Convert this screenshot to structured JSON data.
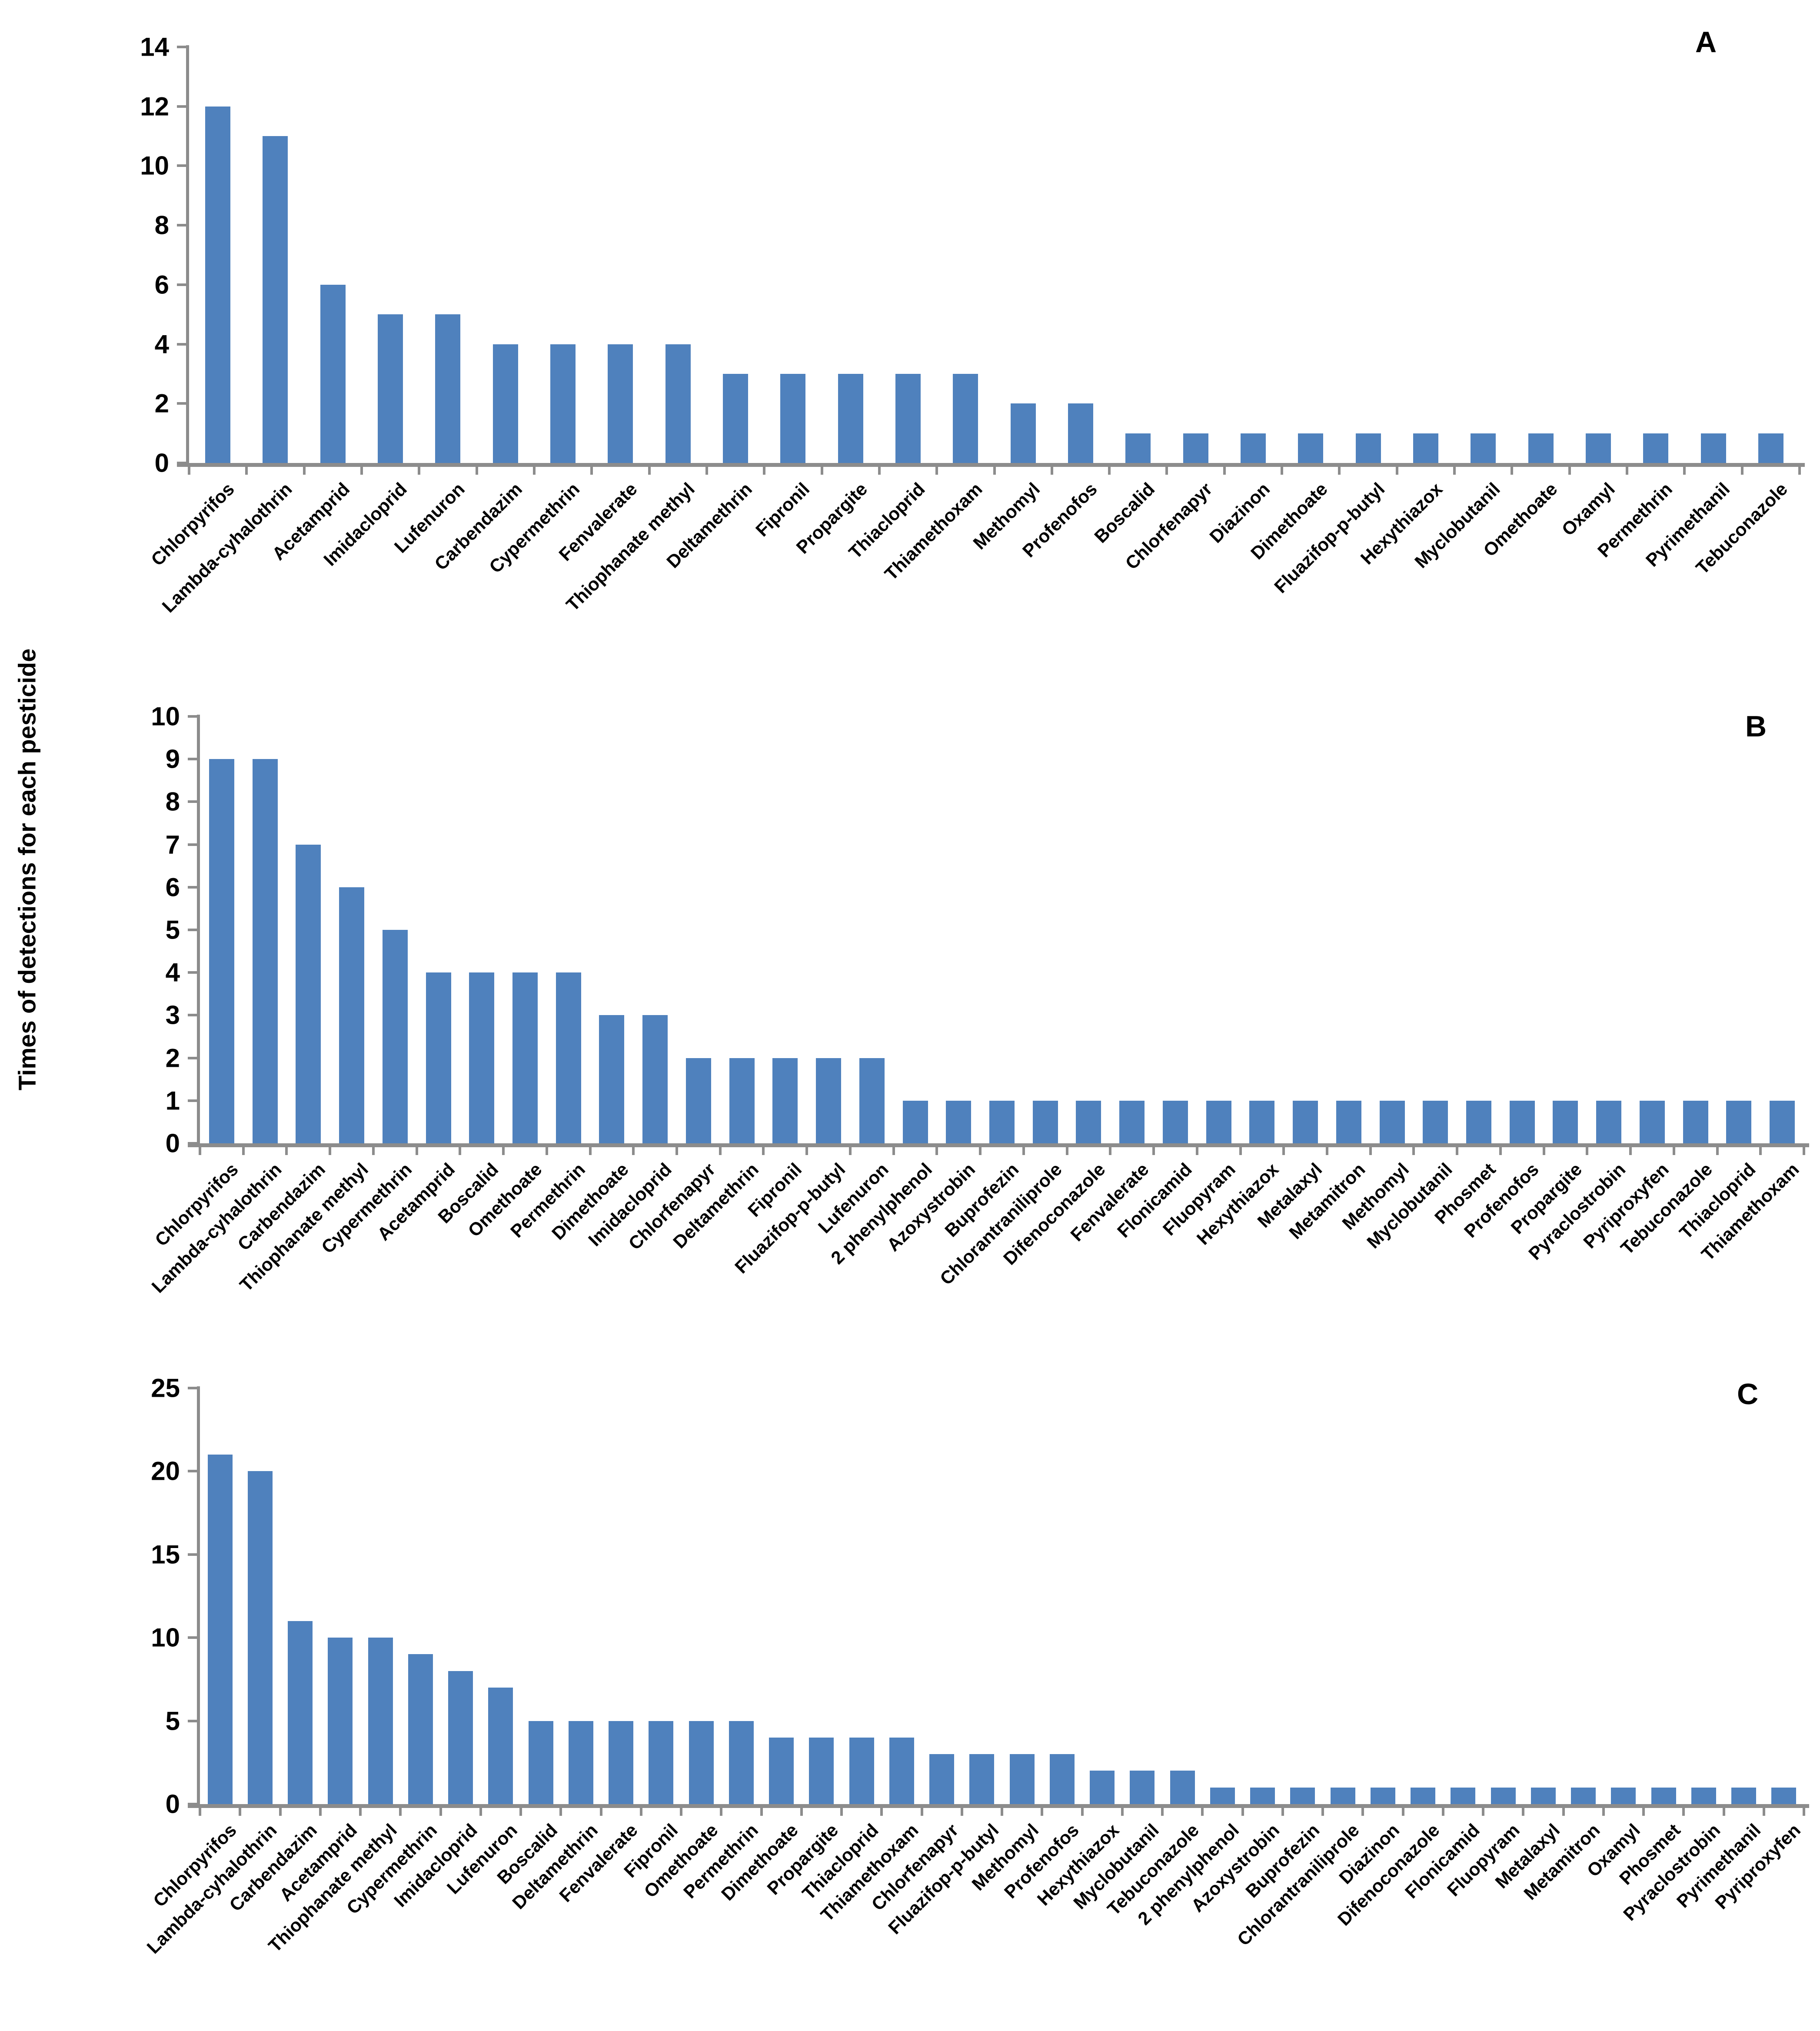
{
  "figure": {
    "ylabel": "Times of detections for each pesticide",
    "bar_color": "#4F81BD",
    "axis_color": "#8C8C8C",
    "text_color": "#000000",
    "background": "#FFFFFF"
  },
  "chart_data": [
    {
      "type": "bar",
      "panel": "A",
      "title": "",
      "xlabel": "",
      "ylabel": "Times of detections for each pesticide",
      "ylim": [
        0,
        14
      ],
      "yticks": [
        0,
        2,
        4,
        6,
        8,
        10,
        12,
        14
      ],
      "grid": false,
      "legend_position": "none",
      "categories": [
        "Chlorpyrifos",
        "Lambda-cyhalothrin",
        "Acetamprid",
        "Imidacloprid",
        "Lufenuron",
        "Carbendazim",
        "Cypermethrin",
        "Fenvalerate",
        "Thiophanate methyl",
        "Deltamethrin",
        "Fipronil",
        "Propargite",
        "Thiacloprid",
        "Thiamethoxam",
        "Methomyl",
        "Profenofos",
        "Boscalid",
        "Chlorfenapyr",
        "Diazinon",
        "Dimethoate",
        "Fluazifop-p-butyl",
        "Hexythiazox",
        "Myclobutanil",
        "Omethoate",
        "Oxamyl",
        "Permethrin",
        "Pyrimethanil",
        "Tebuconazole"
      ],
      "values": [
        12,
        11,
        6,
        5,
        5,
        4,
        4,
        4,
        4,
        3,
        3,
        3,
        3,
        3,
        2,
        2,
        1,
        1,
        1,
        1,
        1,
        1,
        1,
        1,
        1,
        1,
        1,
        1
      ]
    },
    {
      "type": "bar",
      "panel": "B",
      "title": "",
      "xlabel": "",
      "ylabel": "Times of detections for each pesticide",
      "ylim": [
        0,
        10
      ],
      "yticks": [
        0,
        1,
        2,
        3,
        4,
        5,
        6,
        7,
        8,
        9,
        10
      ],
      "grid": false,
      "legend_position": "none",
      "categories": [
        "Chlorpyrifos",
        "Lambda-cyhalothrin",
        "Carbendazim",
        "Thiophanate methyl",
        "Cypermethrin",
        "Acetamprid",
        "Boscalid",
        "Omethoate",
        "Permethrin",
        "Dimethoate",
        "Imidacloprid",
        "Chlorfenapyr",
        "Deltamethrin",
        "Fipronil",
        "Fluazifop-p-butyl",
        "Lufenuron",
        "2 phenylphenol",
        "Azoxystrobin",
        "Buprofezin",
        "Chlorantraniliprole",
        "Difenoconazole",
        "Fenvalerate",
        "Flonicamid",
        "Fluopyram",
        "Hexythiazox",
        "Metalaxyl",
        "Metamitron",
        "Methomyl",
        "Myclobutanil",
        "Phosmet",
        "Profenofos",
        "Propargite",
        "Pyraclostrobin",
        "Pyriproxyfen",
        "Tebuconazole",
        "Thiacloprid",
        "Thiamethoxam"
      ],
      "values": [
        9,
        9,
        7,
        6,
        5,
        4,
        4,
        4,
        4,
        3,
        3,
        2,
        2,
        2,
        2,
        2,
        1,
        1,
        1,
        1,
        1,
        1,
        1,
        1,
        1,
        1,
        1,
        1,
        1,
        1,
        1,
        1,
        1,
        1,
        1,
        1,
        1
      ]
    },
    {
      "type": "bar",
      "panel": "C",
      "title": "",
      "xlabel": "",
      "ylabel": "Times of detections for each pesticide",
      "ylim": [
        0,
        25
      ],
      "yticks": [
        0,
        5,
        10,
        15,
        20,
        25
      ],
      "grid": false,
      "legend_position": "none",
      "categories": [
        "Chlorpyrifos",
        "Lambda-cyhalothrin",
        "Carbendazim",
        "Acetamprid",
        "Thiophanate methyl",
        "Cypermethrin",
        "Imidacloprid",
        "Lufenuron",
        "Boscalid",
        "Deltamethrin",
        "Fenvalerate",
        "Fipronil",
        "Omethoate",
        "Permethrin",
        "Dimethoate",
        "Propargite",
        "Thiacloprid",
        "Thiamethoxam",
        "Chlorfenapyr",
        "Fluazifop-p-butyl",
        "Methomyl",
        "Profenofos",
        "Hexythiazox",
        "Myclobutanil",
        "Tebuconazole",
        "2 phenylphenol",
        "Azoxystrobin",
        "Buprofezin",
        "Chlorantraniliprole",
        "Diazinon",
        "Difenoconazole",
        "Flonicamid",
        "Fluopyram",
        "Metalaxyl",
        "Metamitron",
        "Oxamyl",
        "Phosmet",
        "Pyraclostrobin",
        "Pyrimethanil",
        "Pyriproxyfen"
      ],
      "values": [
        21,
        20,
        11,
        10,
        10,
        9,
        8,
        7,
        5,
        5,
        5,
        5,
        5,
        5,
        4,
        4,
        4,
        4,
        3,
        3,
        3,
        3,
        2,
        2,
        2,
        1,
        1,
        1,
        1,
        1,
        1,
        1,
        1,
        1,
        1,
        1,
        1,
        1,
        1,
        1
      ]
    }
  ]
}
